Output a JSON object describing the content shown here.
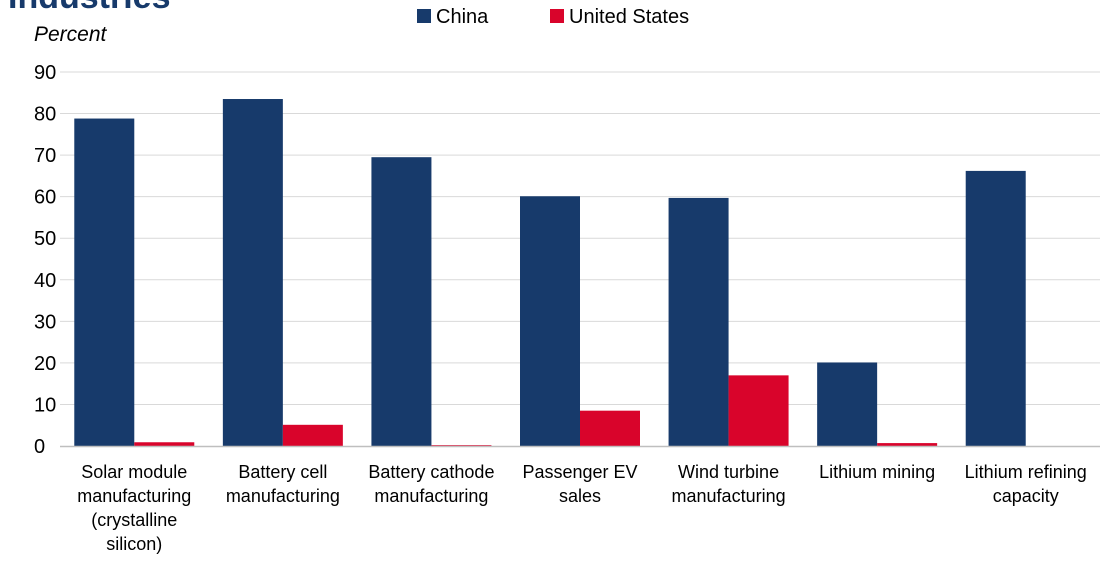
{
  "chart_data": {
    "type": "bar",
    "title": "Industries",
    "ylabel": "Percent",
    "xlabel": "",
    "ylim": [
      0,
      90
    ],
    "yticks": [
      0,
      10,
      20,
      30,
      40,
      50,
      60,
      70,
      80,
      90
    ],
    "grid": true,
    "legend_position": "top-center",
    "categories": [
      "Solar module manufacturing (crystalline silicon)",
      "Battery cell manufacturing",
      "Battery cathode manufacturing",
      "Passenger EV sales",
      "Wind turbine manufacturing",
      "Lithium mining",
      "Lithium refining capacity"
    ],
    "category_lines": [
      [
        "Solar module",
        "manufacturing",
        "(crystalline",
        "silicon)"
      ],
      [
        "Battery cell",
        "manufacturing"
      ],
      [
        "Battery cathode",
        "manufacturing"
      ],
      [
        "Passenger EV",
        "sales"
      ],
      [
        "Wind turbine",
        "manufacturing"
      ],
      [
        "Lithium mining"
      ],
      [
        "Lithium refining",
        "capacity"
      ]
    ],
    "series": [
      {
        "name": "China",
        "color": "#173a6b",
        "values": [
          78.8,
          83.5,
          69.5,
          60.1,
          59.7,
          20.1,
          66.2
        ]
      },
      {
        "name": "United States",
        "color": "#d9042b",
        "values": [
          0.9,
          5.1,
          0.2,
          8.5,
          17.0,
          0.7,
          0
        ]
      }
    ]
  }
}
